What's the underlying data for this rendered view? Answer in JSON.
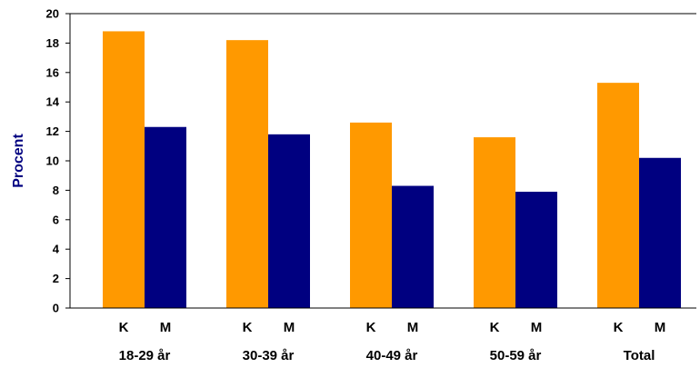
{
  "chart_data": {
    "type": "bar",
    "ylabel": "Procent",
    "ylim": [
      0,
      20
    ],
    "yticks": [
      0,
      2,
      4,
      6,
      8,
      10,
      12,
      14,
      16,
      18,
      20
    ],
    "grid": false,
    "categories": [
      "18-29 år",
      "30-39 år",
      "40-49 år",
      "50-59 år",
      "Total"
    ],
    "series": [
      {
        "name": "K",
        "color": "#ff9900",
        "values": [
          18.8,
          18.2,
          12.6,
          11.6,
          15.3
        ]
      },
      {
        "name": "M",
        "color": "#000080",
        "values": [
          12.3,
          11.8,
          8.3,
          7.9,
          10.2
        ]
      }
    ]
  },
  "colors": {
    "axis_label": "#000080",
    "axis_line": "#000000"
  }
}
